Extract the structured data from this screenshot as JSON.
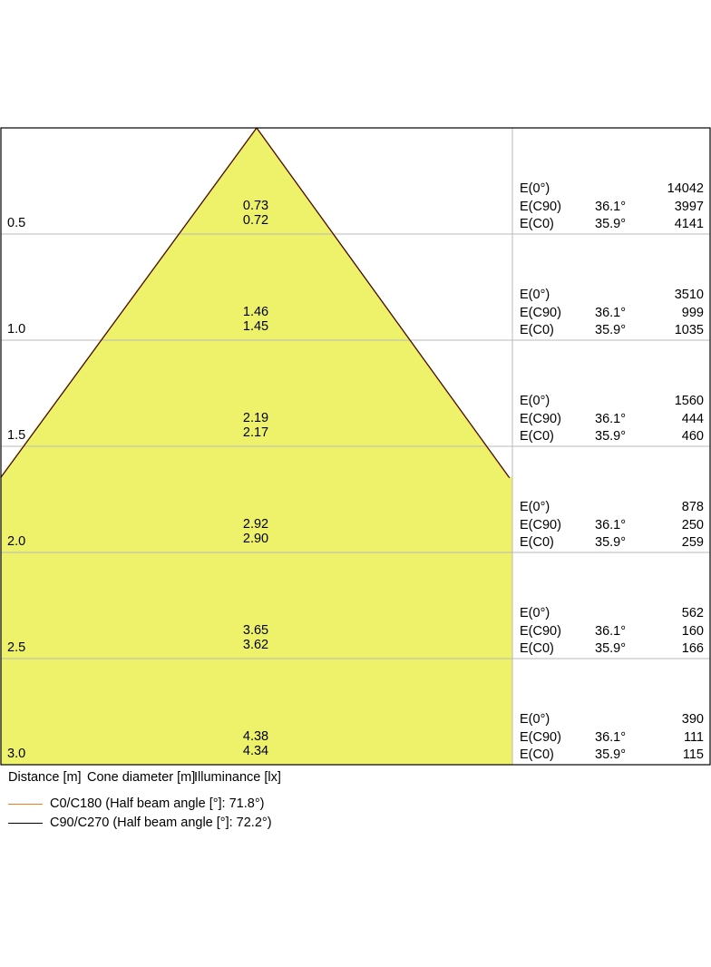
{
  "chart_data": {
    "type": "beam-cone",
    "colors": {
      "fill": "#eef26b",
      "c0_line": "#f07a1c",
      "c90_line": "#000000",
      "grid": "#b8b8b8",
      "border": "#000000"
    },
    "rows": [
      {
        "distance": "0.5",
        "d_c90": "0.73",
        "d_c0": "0.72",
        "e0": "14042",
        "angle_c90": "36.1°",
        "e_c90": "3997",
        "angle_c0": "35.9°",
        "e_c0": "4141"
      },
      {
        "distance": "1.0",
        "d_c90": "1.46",
        "d_c0": "1.45",
        "e0": "3510",
        "angle_c90": "36.1°",
        "e_c90": "999",
        "angle_c0": "35.9°",
        "e_c0": "1035"
      },
      {
        "distance": "1.5",
        "d_c90": "2.19",
        "d_c0": "2.17",
        "e0": "1560",
        "angle_c90": "36.1°",
        "e_c90": "444",
        "angle_c0": "35.9°",
        "e_c0": "460"
      },
      {
        "distance": "2.0",
        "d_c90": "2.92",
        "d_c0": "2.90",
        "e0": "878",
        "angle_c90": "36.1°",
        "e_c90": "250",
        "angle_c0": "35.9°",
        "e_c0": "259"
      },
      {
        "distance": "2.5",
        "d_c90": "3.65",
        "d_c0": "3.62",
        "e0": "562",
        "angle_c90": "36.1°",
        "e_c90": "160",
        "angle_c0": "35.9°",
        "e_c0": "166"
      },
      {
        "distance": "3.0",
        "d_c90": "4.38",
        "d_c0": "4.34",
        "e0": "390",
        "angle_c90": "36.1°",
        "e_c90": "111",
        "angle_c0": "35.9°",
        "e_c0": "115"
      }
    ],
    "row_labels": {
      "e0": "E(0°)",
      "e_c90": "E(C90)",
      "e_c0": "E(C0)"
    },
    "footer": {
      "distance": "Distance [m]",
      "cone": "Cone diameter [m]",
      "illuminance": "Illuminance [lx]"
    },
    "legend": [
      {
        "label": "C0/C180 (Half beam angle [°]: 71.8°)",
        "color": "#f07a1c"
      },
      {
        "label": "C90/C270 (Half beam angle [°]: 72.2°)",
        "color": "#000000"
      }
    ]
  }
}
